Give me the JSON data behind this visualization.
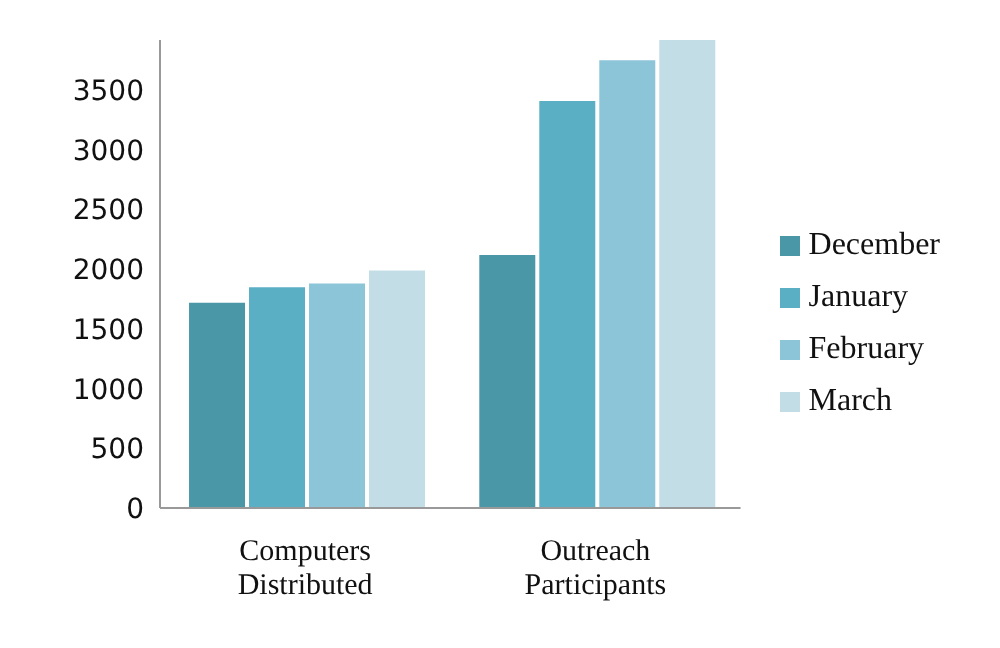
{
  "chart_data": {
    "type": "bar",
    "categories": [
      "Computers Distributed",
      "Outreach Participants"
    ],
    "series": [
      {
        "name": "December",
        "color": "#4a97a8",
        "values": [
          1720,
          2120
        ]
      },
      {
        "name": "January",
        "color": "#5aafc4",
        "values": [
          1850,
          3410
        ]
      },
      {
        "name": "February",
        "color": "#8cc5d8",
        "values": [
          1880,
          3750
        ]
      },
      {
        "name": "March",
        "color": "#c3dde6",
        "values": [
          1990,
          3920
        ]
      }
    ],
    "ylim": [
      0,
      3920
    ],
    "yticks": [
      0,
      500,
      1000,
      1500,
      2000,
      2500,
      3000,
      3500
    ],
    "grid": false,
    "legend": "right"
  }
}
